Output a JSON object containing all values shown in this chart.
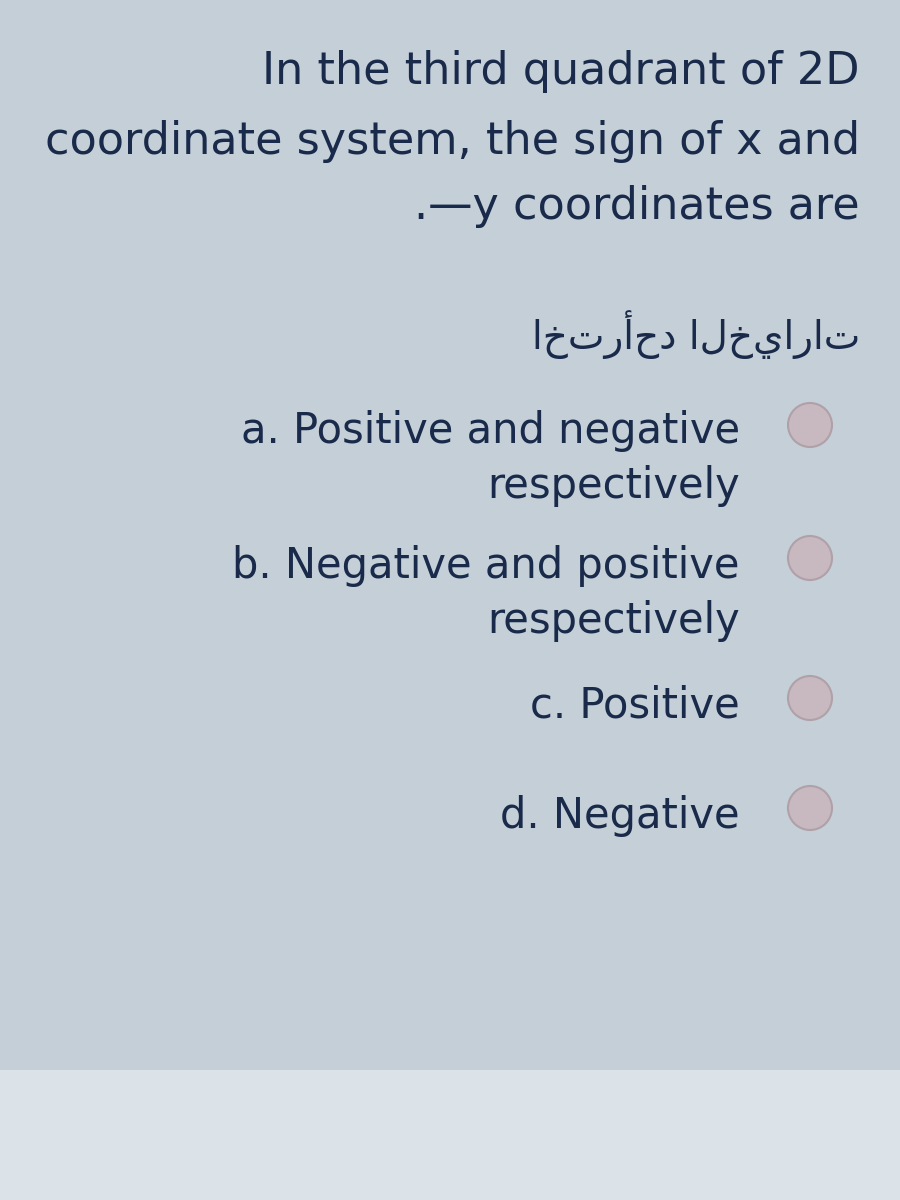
{
  "background_color": "#c4cfd8",
  "bottom_bar_color": "#dce3e8",
  "title_lines": [
    "In the third quadrant of 2D",
    "coordinate system, the sign of x and",
    ".—y coordinates are"
  ],
  "arabic_text": "اخترأحد الخيارات",
  "options": [
    {
      "label": "a.",
      "line1": "Positive and negative",
      "line2": "respectively",
      "radio_on_line": 1
    },
    {
      "label": "b.",
      "line1": "Negative and positive",
      "line2": "respectively",
      "radio_on_line": 1
    },
    {
      "label": "c.",
      "line1": "Positive",
      "line2": null,
      "radio_on_line": 1
    },
    {
      "label": "d.",
      "line1": "Negative",
      "line2": null,
      "radio_on_line": 1
    }
  ],
  "title_fontsize": 32,
  "arabic_fontsize": 28,
  "option_fontsize": 30,
  "text_color": "#1a2a4a",
  "radio_fill_color": "#c8b8c0",
  "radio_edge_color": "#b0a0a8",
  "fig_width": 9.0,
  "fig_height": 12.0,
  "dpi": 100
}
